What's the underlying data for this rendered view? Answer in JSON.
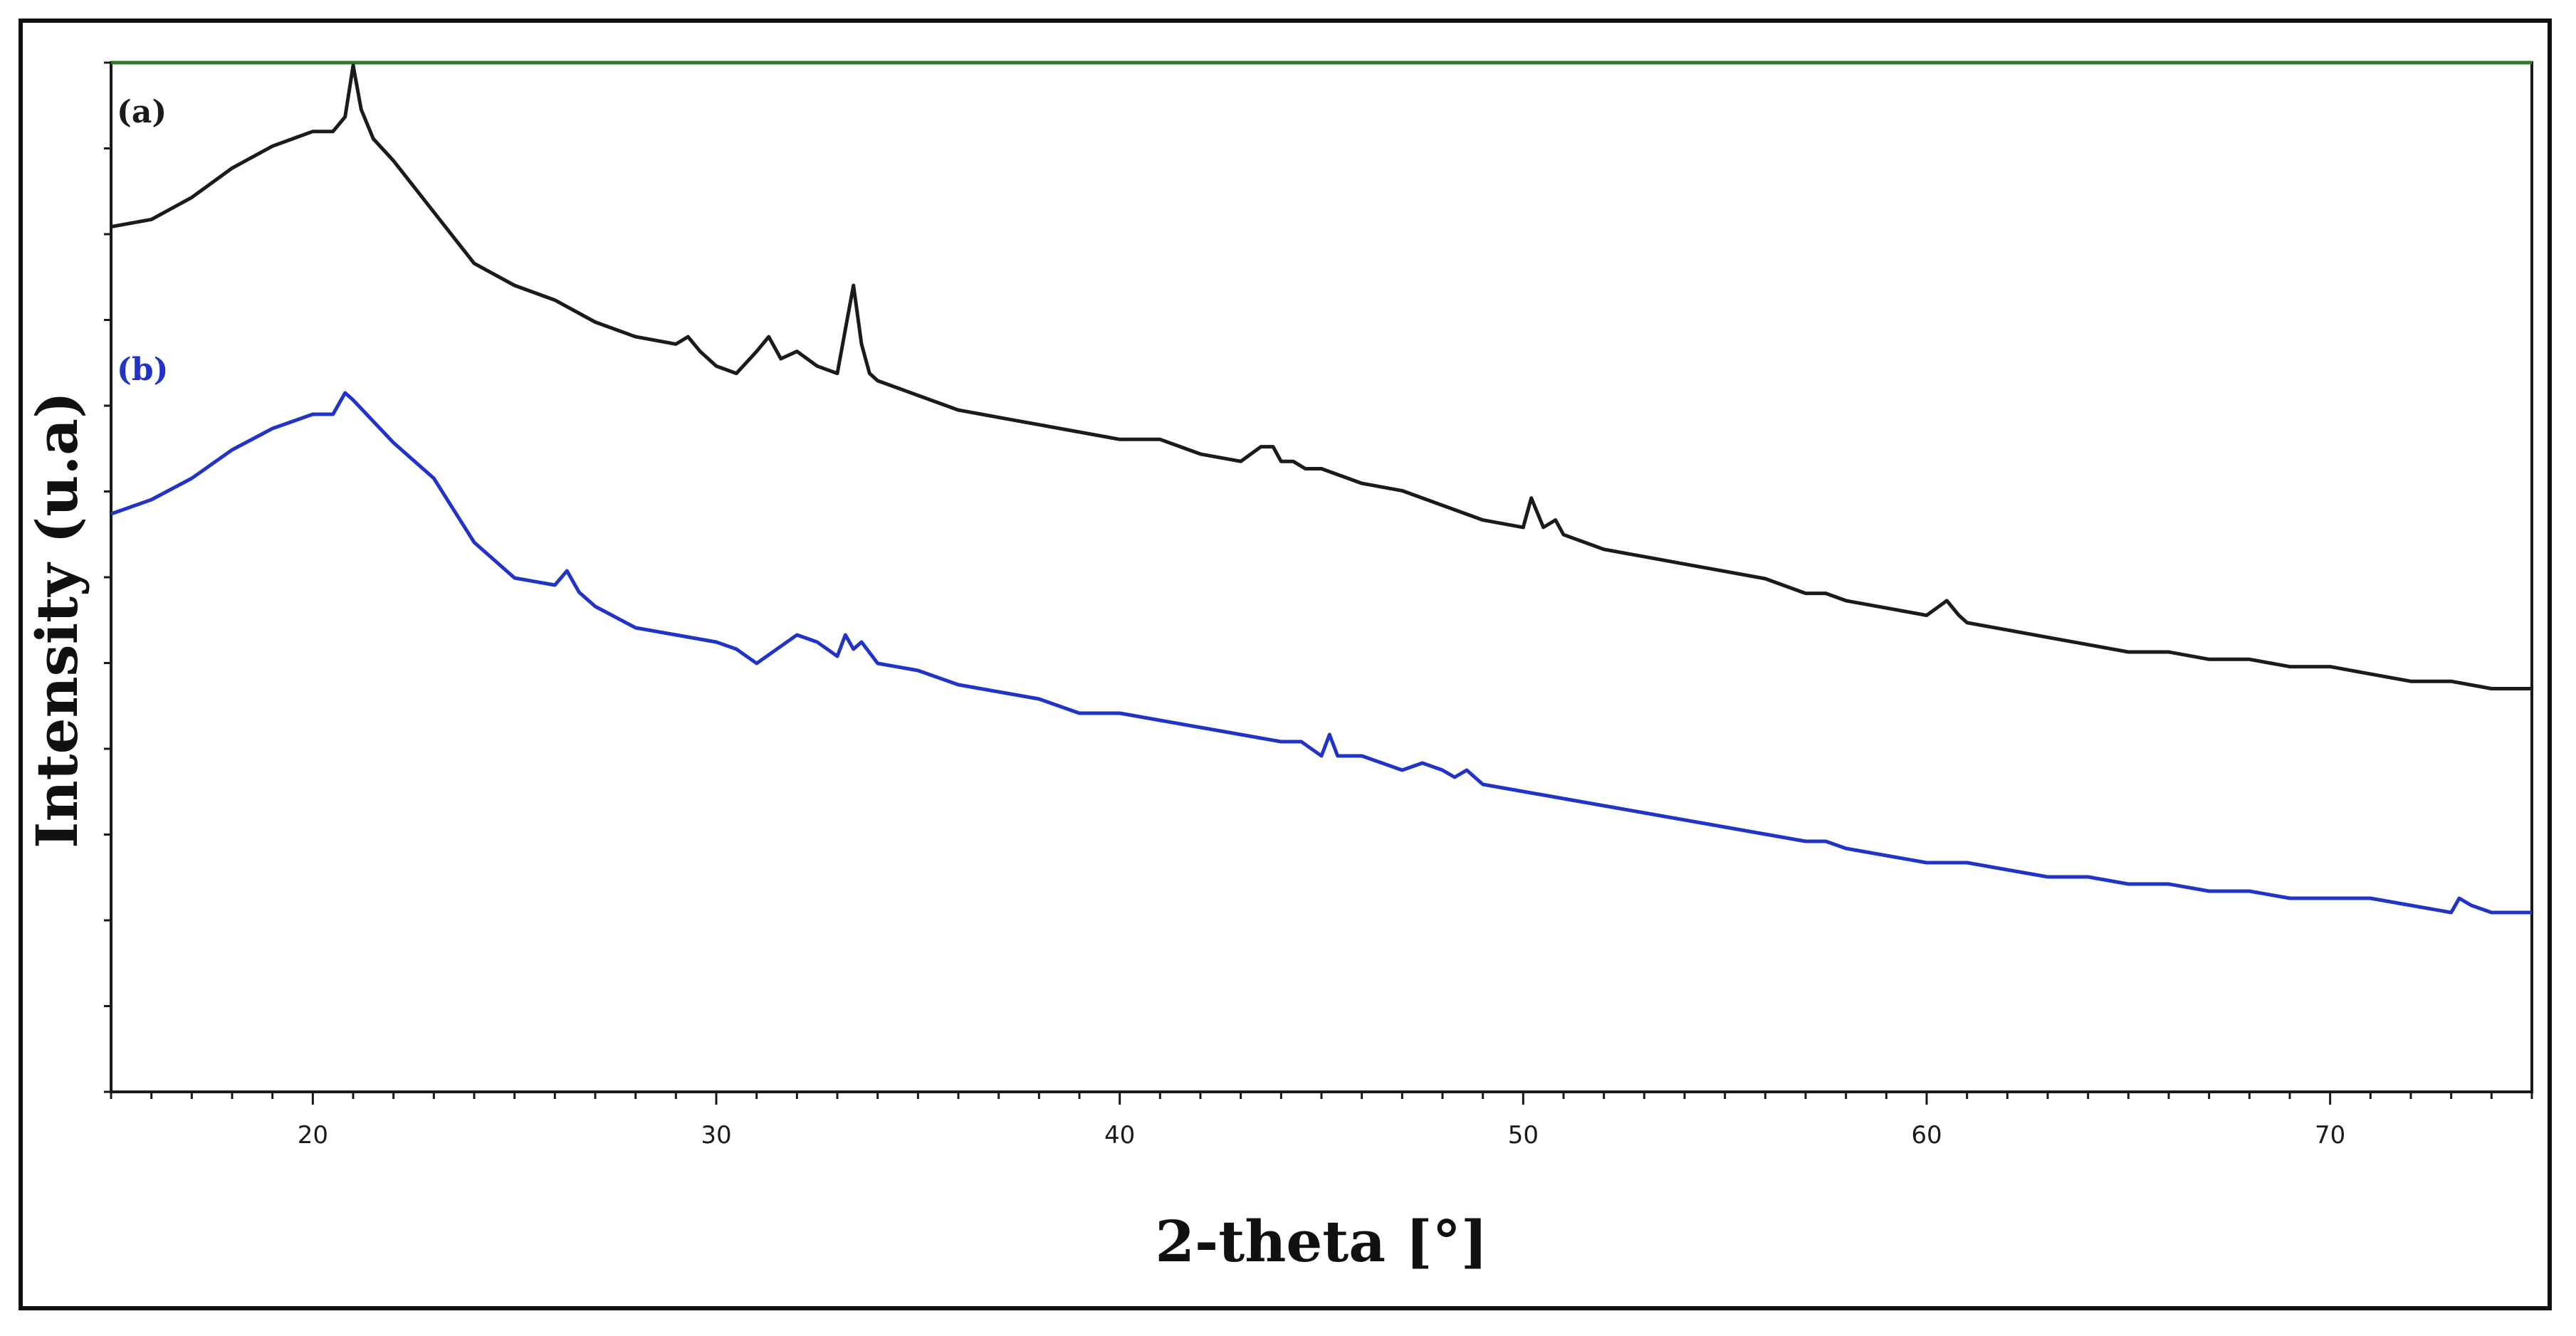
{
  "chart_data": {
    "type": "line",
    "title": "",
    "xlabel": "2-theta [°]",
    "ylabel": "Intensity (u.a)",
    "xlim": [
      15,
      75
    ],
    "xticks": [
      20,
      30,
      40,
      50,
      60,
      70
    ],
    "y_ticks_labeled": false,
    "grid": false,
    "colors": {
      "a": "#1b1b1b",
      "b": "#2234c8",
      "axis": "#1a1a1a",
      "frame_top": "#2d7a2d"
    },
    "series": [
      {
        "name": "(a)",
        "x": [
          15,
          16,
          17,
          18,
          19,
          19.5,
          20,
          20.5,
          20.8,
          21,
          21.2,
          21.5,
          22,
          23,
          24,
          25,
          26,
          27,
          28,
          29,
          29.3,
          29.6,
          30,
          30.5,
          31,
          31.3,
          31.6,
          32,
          32.5,
          33,
          33.2,
          33.4,
          33.6,
          33.8,
          34,
          35,
          36,
          37,
          38,
          39,
          40,
          41,
          42,
          43,
          43.5,
          43.8,
          44,
          44.3,
          44.6,
          45,
          46,
          47,
          48,
          49,
          50,
          50.2,
          50.5,
          50.8,
          51,
          52,
          53,
          54,
          55,
          56,
          57,
          57.5,
          58,
          59,
          60,
          60.5,
          60.8,
          61,
          62,
          63,
          64,
          65,
          66,
          67,
          68,
          69,
          70,
          71,
          72,
          73,
          74,
          75
        ],
        "y": [
          78,
          79,
          82,
          86,
          89,
          90,
          91,
          91,
          93,
          100,
          94,
          90,
          87,
          80,
          73,
          70,
          68,
          65,
          63,
          62,
          63,
          61,
          59,
          58,
          61,
          63,
          60,
          61,
          59,
          58,
          64,
          70,
          62,
          58,
          57,
          55,
          53,
          52,
          51,
          50,
          49,
          49,
          47,
          46,
          48,
          48,
          46,
          46,
          45,
          45,
          43,
          42,
          40,
          38,
          37,
          41,
          37,
          38,
          36,
          34,
          33,
          32,
          31,
          30,
          28,
          28,
          27,
          26,
          25,
          27,
          25,
          24,
          23,
          22,
          21,
          20,
          20,
          19,
          19,
          18,
          18,
          17,
          16,
          16,
          15,
          15
        ]
      },
      {
        "name": "(b)",
        "x": [
          15,
          16,
          17,
          18,
          19,
          19.5,
          20,
          20.5,
          20.8,
          21,
          21.5,
          22,
          23,
          24,
          25,
          26,
          26.3,
          26.6,
          27,
          28,
          29,
          30,
          30.5,
          31,
          31.5,
          32,
          32.5,
          33,
          33.2,
          33.4,
          33.6,
          34,
          35,
          36,
          37,
          38,
          39,
          40,
          41,
          42,
          43,
          44,
          44.5,
          45,
          45.2,
          45.4,
          45.6,
          46,
          47,
          47.5,
          48,
          48.3,
          48.6,
          49,
          50,
          51,
          52,
          53,
          54,
          55,
          56,
          57,
          57.5,
          58,
          59,
          60,
          61,
          62,
          63,
          64,
          65,
          66,
          67,
          68,
          69,
          70,
          71,
          72,
          73,
          73.2,
          73.5,
          74,
          75
        ],
        "y": [
          64,
          66,
          69,
          73,
          76,
          77,
          78,
          78,
          81,
          80,
          77,
          74,
          69,
          60,
          55,
          54,
          56,
          53,
          51,
          48,
          47,
          46,
          45,
          43,
          45,
          47,
          46,
          44,
          47,
          45,
          46,
          43,
          42,
          40,
          39,
          38,
          36,
          36,
          35,
          34,
          33,
          32,
          32,
          30,
          33,
          30,
          30,
          30,
          28,
          29,
          28,
          27,
          28,
          26,
          25,
          24,
          23,
          22,
          21,
          20,
          19,
          18,
          18,
          17,
          16,
          15,
          15,
          14,
          13,
          13,
          12,
          12,
          11,
          11,
          10,
          10,
          10,
          9,
          8,
          10,
          9,
          8,
          8
        ]
      }
    ]
  }
}
